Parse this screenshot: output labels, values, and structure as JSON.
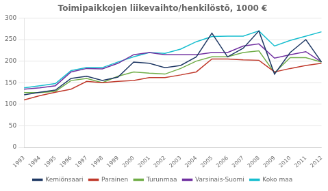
{
  "chart_data": {
    "type": "line",
    "title": "Toimipaikkojen liikevaihto/henkilöstö, 1000 €",
    "categories": [
      "1993",
      "1994",
      "1995",
      "1996",
      "1997",
      "1998",
      "1999",
      "2000",
      "2001",
      "2002",
      "2003",
      "2004",
      "2005",
      "2006",
      "2007",
      "2008",
      "2009",
      "2010",
      "2011",
      "2012"
    ],
    "series": [
      {
        "name": "Kemiönsaari",
        "color": "#1F3864",
        "values": [
          122,
          128,
          133,
          160,
          165,
          155,
          163,
          198,
          195,
          185,
          190,
          210,
          265,
          210,
          230,
          270,
          170,
          220,
          250,
          198
        ]
      },
      {
        "name": "Parainen",
        "color": "#C0392B",
        "values": [
          110,
          120,
          128,
          135,
          153,
          150,
          153,
          155,
          162,
          162,
          168,
          175,
          205,
          205,
          203,
          202,
          175,
          183,
          190,
          195
        ]
      },
      {
        "name": "Turunmaa",
        "color": "#70AD47",
        "values": [
          127,
          127,
          130,
          155,
          160,
          150,
          165,
          175,
          172,
          170,
          183,
          200,
          210,
          210,
          220,
          224,
          173,
          208,
          208,
          198
        ]
      },
      {
        "name": "Varsinais-Suomi",
        "color": "#7030A0",
        "values": [
          135,
          138,
          143,
          175,
          183,
          182,
          195,
          215,
          220,
          215,
          215,
          215,
          220,
          220,
          235,
          240,
          207,
          215,
          222,
          198
        ]
      },
      {
        "name": "Koko maa",
        "color": "#17BECF",
        "values": [
          138,
          143,
          148,
          178,
          185,
          185,
          198,
          210,
          220,
          218,
          228,
          245,
          257,
          258,
          258,
          270,
          235,
          248,
          258,
          268
        ]
      }
    ],
    "ylim": [
      0,
      300
    ],
    "yticks": [
      0,
      50,
      100,
      150,
      200,
      250,
      300
    ],
    "grid": "y",
    "legend": "bottom"
  }
}
